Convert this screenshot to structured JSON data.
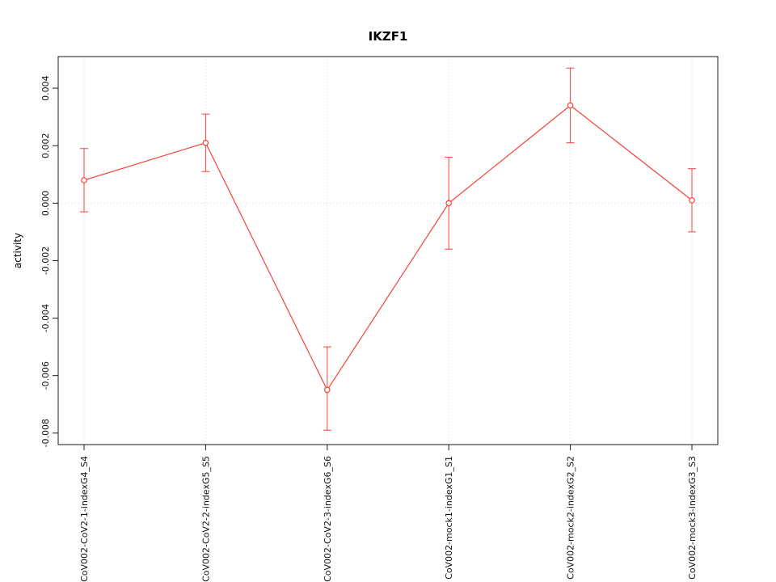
{
  "page": {
    "background": "#ffffff"
  },
  "chart_data": {
    "type": "line",
    "title": "IKZF1",
    "xlabel": "",
    "ylabel": "activity",
    "categories": [
      "CoV002-CoV2-1-indexG4_S4",
      "CoV002-CoV2-2-indexG5_S5",
      "CoV002-CoV2-3-indexG6_S6",
      "CoV002-mock1-indexG1_S1",
      "CoV002-mock2-indexG2_S2",
      "CoV002-mock3-indexG3_S3"
    ],
    "series": [
      {
        "name": "activity",
        "color": "#f44336",
        "marker": "open-circle",
        "values": [
          0.0008,
          0.0021,
          -0.0065,
          0.0,
          0.0034,
          0.0001
        ],
        "error_low": [
          -0.0003,
          0.0011,
          -0.0079,
          -0.0016,
          0.0021,
          -0.001
        ],
        "error_high": [
          0.0019,
          0.0031,
          -0.005,
          0.0016,
          0.0047,
          0.0012
        ]
      }
    ],
    "ylim": [
      -0.0084,
      0.0051
    ],
    "yticks": [
      -0.008,
      -0.006,
      -0.004,
      -0.002,
      0.0,
      0.002,
      0.004
    ],
    "ytick_decimals": 3,
    "grid": {
      "vertical": "per-category",
      "horizontal_at": [
        0.0
      ],
      "style": "dotted",
      "color": "#d8d8d8"
    },
    "legend": "none",
    "axis_color": "#1a1a1a",
    "tick_label_color": "#111111"
  }
}
